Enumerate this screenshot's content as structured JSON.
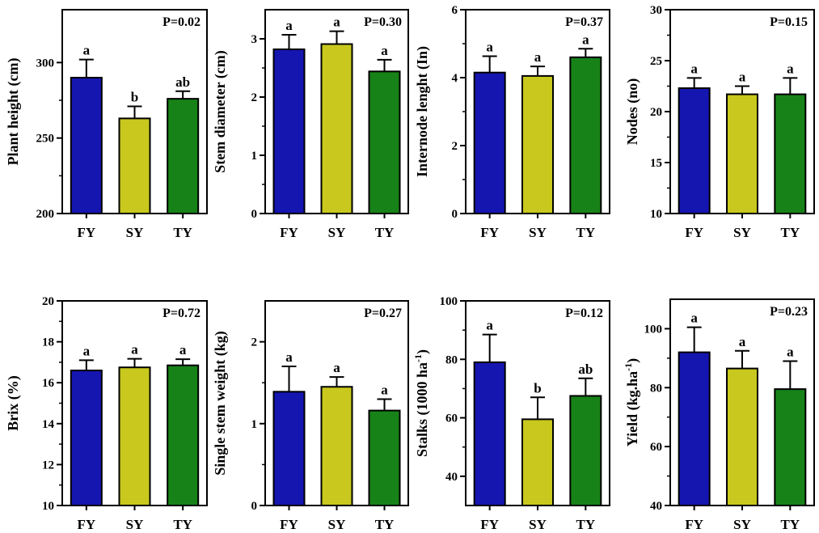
{
  "colors": {
    "FY": "#1515b0",
    "SY": "#c8c81e",
    "TY": "#178217"
  },
  "chart_data": [
    {
      "type": "bar",
      "ylabel": "Plant height (cm)",
      "pvalue": "P=0.02",
      "ylim": [
        200,
        335
      ],
      "yticks": [
        200,
        250,
        300
      ],
      "categories": [
        "FY",
        "SY",
        "TY"
      ],
      "values": [
        290,
        263,
        276
      ],
      "errors": [
        12,
        8,
        5
      ],
      "letters": [
        "a",
        "b",
        "ab"
      ]
    },
    {
      "type": "bar",
      "ylabel": "Stem diameter (cm)",
      "pvalue": "P=0.30",
      "ylim": [
        0,
        3.5
      ],
      "yticks": [
        0,
        1,
        2,
        3
      ],
      "categories": [
        "FY",
        "SY",
        "TY"
      ],
      "values": [
        2.82,
        2.91,
        2.44
      ],
      "errors": [
        0.25,
        0.22,
        0.2
      ],
      "letters": [
        "a",
        "a",
        "a"
      ]
    },
    {
      "type": "bar",
      "ylabel": "Internode lenght (In)",
      "pvalue": "P=0.37",
      "ylim": [
        0,
        6
      ],
      "yticks": [
        0,
        2,
        4,
        6
      ],
      "categories": [
        "FY",
        "SY",
        "TY"
      ],
      "values": [
        4.15,
        4.05,
        4.6
      ],
      "errors": [
        0.48,
        0.28,
        0.25
      ],
      "letters": [
        "a",
        "a",
        "a"
      ]
    },
    {
      "type": "bar",
      "ylabel": "Nodes (no)",
      "pvalue": "P=0.15",
      "ylim": [
        10,
        30
      ],
      "yticks": [
        10,
        15,
        20,
        25,
        30
      ],
      "categories": [
        "FY",
        "SY",
        "TY"
      ],
      "values": [
        22.3,
        21.7,
        21.7
      ],
      "errors": [
        1.0,
        0.8,
        1.6
      ],
      "letters": [
        "a",
        "a",
        "a"
      ]
    },
    {
      "type": "bar",
      "ylabel": "Brix (%)",
      "pvalue": "P=0.72",
      "ylim": [
        10,
        20
      ],
      "yticks": [
        10,
        12,
        14,
        16,
        18,
        20
      ],
      "categories": [
        "FY",
        "SY",
        "TY"
      ],
      "values": [
        16.6,
        16.75,
        16.85
      ],
      "errors": [
        0.5,
        0.42,
        0.3
      ],
      "letters": [
        "a",
        "a",
        "a"
      ]
    },
    {
      "type": "bar",
      "ylabel": "Single stem weight (kg)",
      "pvalue": "P=0.27",
      "ylim": [
        0,
        2.5
      ],
      "yticks": [
        0,
        1,
        2
      ],
      "categories": [
        "FY",
        "SY",
        "TY"
      ],
      "values": [
        1.39,
        1.45,
        1.16
      ],
      "errors": [
        0.31,
        0.12,
        0.14
      ],
      "letters": [
        "a",
        "a",
        "a"
      ]
    },
    {
      "type": "bar",
      "ylabel": "Stalks (1000 ha",
      "ylabel_sup": "-1",
      "ylabel_end": ")",
      "pvalue": "P=0.12",
      "ylim": [
        30,
        100
      ],
      "yticks": [
        40,
        60,
        80,
        100
      ],
      "categories": [
        "FY",
        "SY",
        "TY"
      ],
      "values": [
        79,
        59.5,
        67.5
      ],
      "errors": [
        9.5,
        7.5,
        6
      ],
      "letters": [
        "a",
        "b",
        "ab"
      ]
    },
    {
      "type": "bar",
      "ylabel": "Yield (kg.ha",
      "ylabel_sup": "-1",
      "ylabel_end": ")",
      "pvalue": "P=0.23",
      "ylim": [
        40,
        110
      ],
      "yticks": [
        40,
        60,
        80,
        100
      ],
      "categories": [
        "FY",
        "SY",
        "TY"
      ],
      "values": [
        92,
        86.5,
        79.5
      ],
      "errors": [
        8.5,
        6,
        9.5
      ],
      "letters": [
        "a",
        "a",
        "a"
      ]
    }
  ]
}
